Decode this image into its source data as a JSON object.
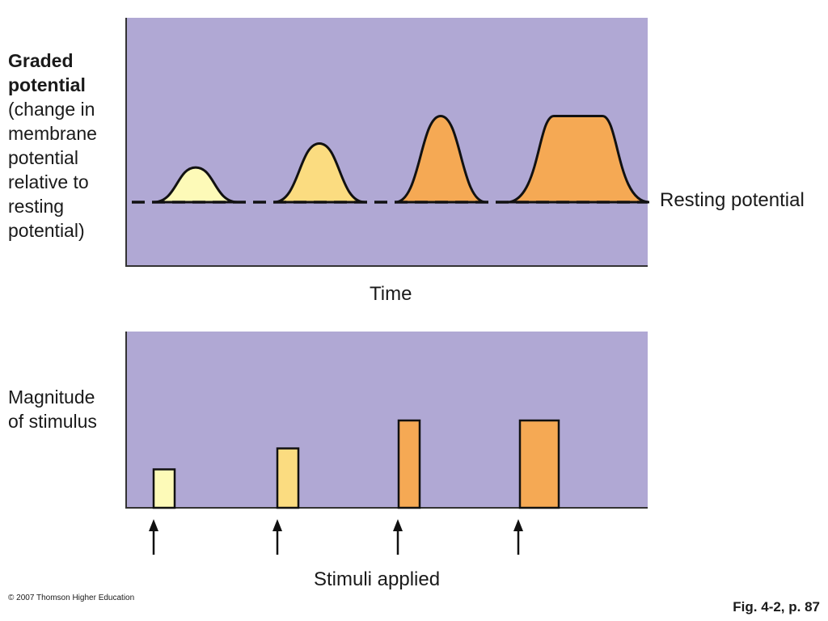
{
  "top_panel": {
    "ylabel_bold": [
      "Graded",
      "potential"
    ],
    "ylabel_rest": [
      "(change in",
      "membrane",
      "potential",
      "relative to",
      "resting",
      "potential)"
    ],
    "baseline_label": "Resting potential",
    "xlabel": "Time"
  },
  "bottom_panel": {
    "ylabel": [
      "Magnitude",
      "of stimulus"
    ],
    "xlabel": "Stimuli applied"
  },
  "footer": {
    "copyright": "© 2007 Thomson Higher Education",
    "figure_ref": "Fig. 4-2, p. 87"
  },
  "colors": {
    "panel_bg": "#b0a8d4",
    "stimulus_1": "#fdfab8",
    "stimulus_2": "#fbdc80",
    "stimulus_3": "#f5a954",
    "stimulus_4": "#f5a954",
    "outline": "#111111"
  },
  "stimuli": [
    {
      "name": "stimulus-1",
      "magnitude": 0.44,
      "potential_height": 0.29,
      "plateau": 0
    },
    {
      "name": "stimulus-2",
      "magnitude": 0.68,
      "potential_height": 0.49,
      "plateau": 0
    },
    {
      "name": "stimulus-3",
      "magnitude": 1.0,
      "potential_height": 0.72,
      "plateau": 0
    },
    {
      "name": "stimulus-4",
      "magnitude": 1.0,
      "potential_height": 0.72,
      "plateau": 1
    }
  ]
}
